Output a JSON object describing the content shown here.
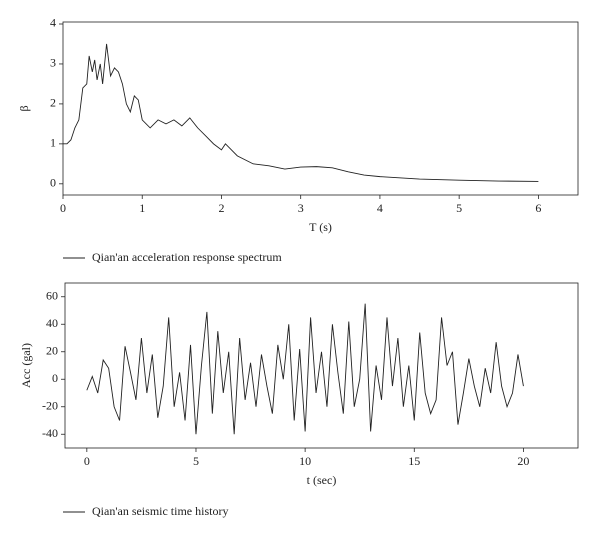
{
  "chart_data": [
    {
      "type": "line",
      "xlabel": "T (s)",
      "ylabel": "β",
      "x": [
        0,
        0.05,
        0.1,
        0.15,
        0.2,
        0.25,
        0.3,
        0.33,
        0.37,
        0.4,
        0.43,
        0.47,
        0.5,
        0.55,
        0.6,
        0.65,
        0.7,
        0.75,
        0.8,
        0.85,
        0.9,
        0.95,
        1.0,
        1.1,
        1.2,
        1.3,
        1.4,
        1.5,
        1.55,
        1.6,
        1.7,
        1.8,
        1.9,
        2.0,
        2.05,
        2.1,
        2.2,
        2.3,
        2.4,
        2.6,
        2.8,
        3.0,
        3.2,
        3.4,
        3.6,
        3.8,
        4.0,
        4.5,
        5.0,
        5.5,
        6.0
      ],
      "series": [
        {
          "name": "Qian'an acceleration response spectrum",
          "color": "#222222",
          "values": [
            1.0,
            1.0,
            1.1,
            1.4,
            1.6,
            2.4,
            2.5,
            3.2,
            2.8,
            3.1,
            2.6,
            3.0,
            2.5,
            3.5,
            2.7,
            2.9,
            2.8,
            2.5,
            2.0,
            1.8,
            2.2,
            2.1,
            1.6,
            1.4,
            1.6,
            1.5,
            1.6,
            1.45,
            1.55,
            1.65,
            1.4,
            1.2,
            1.0,
            0.85,
            1.0,
            0.9,
            0.7,
            0.6,
            0.5,
            0.45,
            0.37,
            0.42,
            0.43,
            0.4,
            0.3,
            0.22,
            0.18,
            0.12,
            0.09,
            0.07,
            0.06
          ]
        }
      ],
      "xlim": [
        0,
        6.5
      ],
      "ylim": [
        -0.28,
        4.05
      ],
      "xticks": [
        0,
        1,
        2,
        3,
        4,
        5,
        6
      ],
      "yticks": [
        0,
        1,
        2,
        3,
        4
      ]
    },
    {
      "type": "line",
      "xlabel": "t (sec)",
      "ylabel": "Acc (gal)",
      "x": [
        0,
        0.25,
        0.5,
        0.75,
        1,
        1.25,
        1.5,
        1.75,
        2,
        2.25,
        2.5,
        2.75,
        3,
        3.25,
        3.5,
        3.75,
        4,
        4.25,
        4.5,
        4.75,
        5,
        5.25,
        5.5,
        5.75,
        6,
        6.25,
        6.5,
        6.75,
        7,
        7.25,
        7.5,
        7.75,
        8,
        8.25,
        8.5,
        8.75,
        9,
        9.25,
        9.5,
        9.75,
        10,
        10.25,
        10.5,
        10.75,
        11,
        11.25,
        11.5,
        11.75,
        12,
        12.25,
        12.5,
        12.75,
        13,
        13.25,
        13.5,
        13.75,
        14,
        14.25,
        14.5,
        14.75,
        15,
        15.25,
        15.5,
        15.75,
        16,
        16.25,
        16.5,
        16.75,
        17,
        17.25,
        17.5,
        17.75,
        18,
        18.25,
        18.5,
        18.75,
        19,
        19.25,
        19.5,
        19.75,
        20
      ],
      "series": [
        {
          "name": "Qian'an seismic time history",
          "color": "#222222",
          "values": [
            -8,
            2,
            -10,
            14,
            8,
            -20,
            -30,
            24,
            5,
            -15,
            30,
            -10,
            18,
            -28,
            -5,
            45,
            -20,
            5,
            -30,
            25,
            -40,
            10,
            49,
            -25,
            35,
            -10,
            20,
            -40,
            30,
            -15,
            12,
            -20,
            18,
            -5,
            -25,
            25,
            0,
            40,
            -30,
            22,
            -38,
            45,
            -10,
            20,
            -20,
            40,
            5,
            -25,
            42,
            -20,
            0,
            55,
            -38,
            10,
            -15,
            45,
            -5,
            30,
            -20,
            10,
            -30,
            34,
            -10,
            -25,
            -15,
            45,
            10,
            20,
            -33,
            -10,
            15,
            -5,
            -20,
            8,
            -10,
            27,
            -5,
            -20,
            -10,
            18,
            -5
          ]
        }
      ],
      "xlim": [
        -1,
        22.5
      ],
      "ylim": [
        -50,
        70
      ],
      "xticks": [
        0,
        5,
        10,
        15,
        20
      ],
      "yticks": [
        -40,
        -20,
        0,
        20,
        40,
        60
      ]
    }
  ]
}
